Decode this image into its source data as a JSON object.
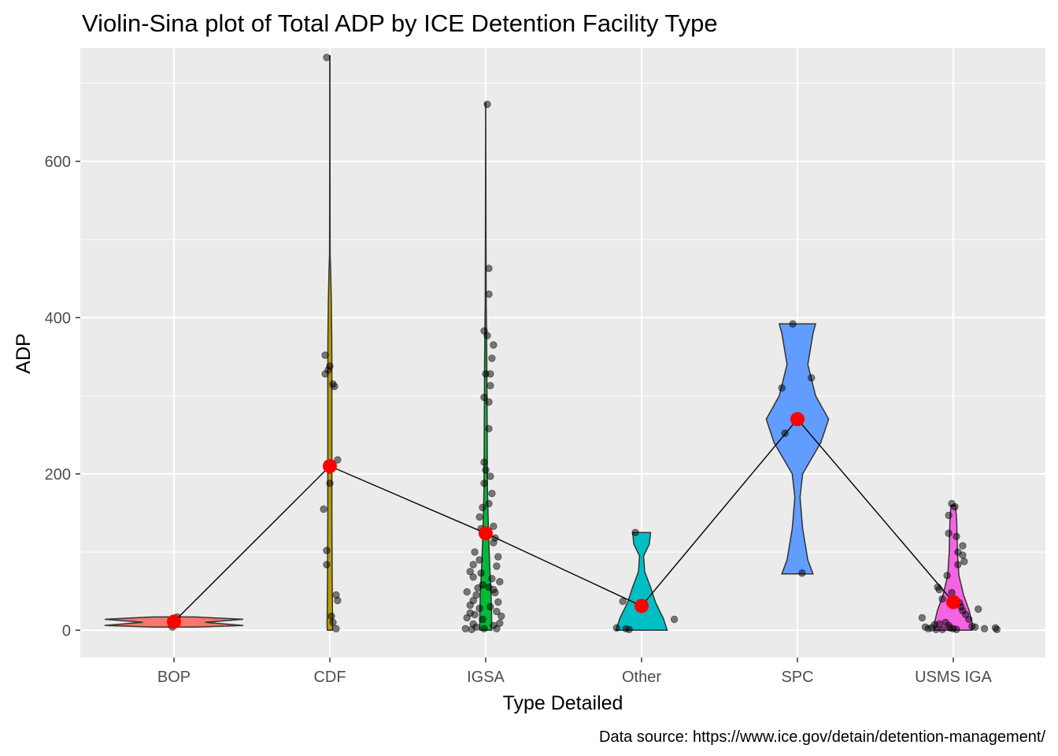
{
  "chart_data": {
    "type": "violin",
    "title": "Violin-Sina plot of Total ADP by ICE Detention Facility Type",
    "xlabel": "Type Detailed",
    "ylabel": "ADP",
    "caption": "Data source: https://www.ice.gov/detain/detention-management/",
    "categories": [
      "BOP",
      "CDF",
      "IGSA",
      "Other",
      "SPC",
      "USMS IGA"
    ],
    "ylim": [
      -35,
      745
    ],
    "yticks": [
      0,
      200,
      400,
      600
    ],
    "grid": true,
    "legend": "none",
    "background": "#EBEBEB",
    "colors": {
      "BOP": "#F8766D",
      "CDF": "#B79F00",
      "IGSA": "#00BA38",
      "Other": "#00BFC4",
      "SPC": "#619CFF",
      "USMS IGA": "#F564E3",
      "mean_point": "#FF0000",
      "mean_line": "#000000",
      "jitter_point": "#000000"
    },
    "violins": [
      {
        "category": "BOP",
        "profile": [
          [
            4,
            0.3
          ],
          [
            6,
            1.0
          ],
          [
            10,
            0.45
          ],
          [
            14,
            1.0
          ],
          [
            17,
            0.3
          ]
        ]
      },
      {
        "category": "CDF",
        "profile": [
          [
            0,
            0.9
          ],
          [
            5,
            1.0
          ],
          [
            60,
            0.85
          ],
          [
            150,
            0.75
          ],
          [
            250,
            0.75
          ],
          [
            320,
            0.75
          ],
          [
            370,
            0.7
          ],
          [
            420,
            0.55
          ],
          [
            460,
            0.3
          ],
          [
            480,
            0.12
          ],
          [
            520,
            0.08
          ],
          [
            620,
            0.06
          ],
          [
            735,
            0.05
          ]
        ]
      },
      {
        "category": "IGSA",
        "profile": [
          [
            0,
            1.0
          ],
          [
            20,
            1.0
          ],
          [
            50,
            0.9
          ],
          [
            80,
            0.7
          ],
          [
            120,
            0.5
          ],
          [
            180,
            0.3
          ],
          [
            250,
            0.25
          ],
          [
            330,
            0.2
          ],
          [
            380,
            0.15
          ],
          [
            420,
            0.08
          ],
          [
            500,
            0.05
          ],
          [
            600,
            0.03
          ],
          [
            675,
            0.02
          ]
        ]
      },
      {
        "category": "Other",
        "profile": [
          [
            0,
            1.0
          ],
          [
            15,
            0.85
          ],
          [
            35,
            0.55
          ],
          [
            55,
            0.35
          ],
          [
            75,
            0.12
          ],
          [
            95,
            0.08
          ],
          [
            110,
            0.3
          ],
          [
            125,
            0.35
          ]
        ]
      },
      {
        "category": "SPC",
        "profile": [
          [
            72,
            0.3
          ],
          [
            90,
            0.2
          ],
          [
            130,
            0.1
          ],
          [
            170,
            0.05
          ],
          [
            200,
            0.1
          ],
          [
            240,
            0.45
          ],
          [
            270,
            0.6
          ],
          [
            300,
            0.35
          ],
          [
            340,
            0.2
          ],
          [
            380,
            0.3
          ],
          [
            392,
            0.35
          ]
        ]
      },
      {
        "category": "USMS IGA",
        "profile": [
          [
            0,
            1.0
          ],
          [
            10,
            1.0
          ],
          [
            25,
            0.85
          ],
          [
            45,
            0.55
          ],
          [
            70,
            0.3
          ],
          [
            100,
            0.22
          ],
          [
            140,
            0.18
          ],
          [
            160,
            0.12
          ]
        ]
      }
    ],
    "means": [
      {
        "category": "BOP",
        "value": 11
      },
      {
        "category": "CDF",
        "value": 210
      },
      {
        "category": "IGSA",
        "value": 124
      },
      {
        "category": "Other",
        "value": 31
      },
      {
        "category": "SPC",
        "value": 270
      },
      {
        "category": "USMS IGA",
        "value": 36
      }
    ],
    "points": [
      {
        "category": "BOP",
        "offset": 0.02,
        "value": 17
      },
      {
        "category": "BOP",
        "offset": -0.01,
        "value": 4
      },
      {
        "category": "BOP",
        "offset": 0.01,
        "value": 10
      },
      {
        "category": "CDF",
        "offset": -0.02,
        "value": 733
      },
      {
        "category": "CDF",
        "offset": -0.03,
        "value": 352
      },
      {
        "category": "CDF",
        "offset": 0.0,
        "value": 338
      },
      {
        "category": "CDF",
        "offset": -0.01,
        "value": 333
      },
      {
        "category": "CDF",
        "offset": -0.03,
        "value": 328
      },
      {
        "category": "CDF",
        "offset": 0.02,
        "value": 315
      },
      {
        "category": "CDF",
        "offset": 0.03,
        "value": 312
      },
      {
        "category": "CDF",
        "offset": 0.05,
        "value": 218
      },
      {
        "category": "CDF",
        "offset": 0.0,
        "value": 205
      },
      {
        "category": "CDF",
        "offset": 0.0,
        "value": 188
      },
      {
        "category": "CDF",
        "offset": -0.04,
        "value": 155
      },
      {
        "category": "CDF",
        "offset": -0.02,
        "value": 102
      },
      {
        "category": "CDF",
        "offset": -0.02,
        "value": 84
      },
      {
        "category": "CDF",
        "offset": 0.04,
        "value": 45
      },
      {
        "category": "CDF",
        "offset": 0.05,
        "value": 38
      },
      {
        "category": "CDF",
        "offset": 0.01,
        "value": 18
      },
      {
        "category": "CDF",
        "offset": 0.02,
        "value": 10
      },
      {
        "category": "CDF",
        "offset": 0.04,
        "value": 2
      },
      {
        "category": "IGSA",
        "offset": 0.01,
        "value": 673
      },
      {
        "category": "IGSA",
        "offset": 0.02,
        "value": 463
      },
      {
        "category": "IGSA",
        "offset": 0.02,
        "value": 430
      },
      {
        "category": "IGSA",
        "offset": -0.01,
        "value": 383
      },
      {
        "category": "IGSA",
        "offset": 0.01,
        "value": 377
      },
      {
        "category": "IGSA",
        "offset": 0.05,
        "value": 365
      },
      {
        "category": "IGSA",
        "offset": 0.04,
        "value": 348
      },
      {
        "category": "IGSA",
        "offset": 0.0,
        "value": 328
      },
      {
        "category": "IGSA",
        "offset": 0.03,
        "value": 328
      },
      {
        "category": "IGSA",
        "offset": 0.03,
        "value": 313
      },
      {
        "category": "IGSA",
        "offset": -0.01,
        "value": 298
      },
      {
        "category": "IGSA",
        "offset": 0.02,
        "value": 292
      },
      {
        "category": "IGSA",
        "offset": 0.02,
        "value": 258
      },
      {
        "category": "IGSA",
        "offset": -0.01,
        "value": 215
      },
      {
        "category": "IGSA",
        "offset": 0.0,
        "value": 205
      },
      {
        "category": "IGSA",
        "offset": 0.03,
        "value": 197
      },
      {
        "category": "IGSA",
        "offset": -0.01,
        "value": 188
      },
      {
        "category": "IGSA",
        "offset": 0.04,
        "value": 175
      },
      {
        "category": "IGSA",
        "offset": 0.02,
        "value": 162
      },
      {
        "category": "IGSA",
        "offset": -0.02,
        "value": 157
      },
      {
        "category": "IGSA",
        "offset": -0.04,
        "value": 145
      },
      {
        "category": "IGSA",
        "offset": 0.05,
        "value": 133
      },
      {
        "category": "IGSA",
        "offset": -0.03,
        "value": 130
      },
      {
        "category": "IGSA",
        "offset": 0.06,
        "value": 118
      },
      {
        "category": "IGSA",
        "offset": 0.05,
        "value": 112
      },
      {
        "category": "IGSA",
        "offset": -0.07,
        "value": 100
      },
      {
        "category": "IGSA",
        "offset": 0.08,
        "value": 94
      },
      {
        "category": "IGSA",
        "offset": -0.04,
        "value": 90
      },
      {
        "category": "IGSA",
        "offset": -0.08,
        "value": 84
      },
      {
        "category": "IGSA",
        "offset": 0.07,
        "value": 82
      },
      {
        "category": "IGSA",
        "offset": -0.1,
        "value": 75
      },
      {
        "category": "IGSA",
        "offset": -0.03,
        "value": 73
      },
      {
        "category": "IGSA",
        "offset": -0.08,
        "value": 68
      },
      {
        "category": "IGSA",
        "offset": 0.04,
        "value": 66
      },
      {
        "category": "IGSA",
        "offset": 0.09,
        "value": 62
      },
      {
        "category": "IGSA",
        "offset": -0.02,
        "value": 58
      },
      {
        "category": "IGSA",
        "offset": 0.02,
        "value": 55
      },
      {
        "category": "IGSA",
        "offset": -0.05,
        "value": 54
      },
      {
        "category": "IGSA",
        "offset": 0.05,
        "value": 52
      },
      {
        "category": "IGSA",
        "offset": -0.12,
        "value": 49
      },
      {
        "category": "IGSA",
        "offset": 0.06,
        "value": 48
      },
      {
        "category": "IGSA",
        "offset": -0.06,
        "value": 45
      },
      {
        "category": "IGSA",
        "offset": -0.08,
        "value": 38
      },
      {
        "category": "IGSA",
        "offset": 0.08,
        "value": 36
      },
      {
        "category": "IGSA",
        "offset": -0.1,
        "value": 32
      },
      {
        "category": "IGSA",
        "offset": 0.03,
        "value": 30
      },
      {
        "category": "IGSA",
        "offset": -0.04,
        "value": 28
      },
      {
        "category": "IGSA",
        "offset": 0.07,
        "value": 24
      },
      {
        "category": "IGSA",
        "offset": -0.1,
        "value": 22
      },
      {
        "category": "IGSA",
        "offset": -0.07,
        "value": 20
      },
      {
        "category": "IGSA",
        "offset": 0.1,
        "value": 18
      },
      {
        "category": "IGSA",
        "offset": -0.12,
        "value": 16
      },
      {
        "category": "IGSA",
        "offset": -0.02,
        "value": 14
      },
      {
        "category": "IGSA",
        "offset": 0.09,
        "value": 9
      },
      {
        "category": "IGSA",
        "offset": -0.08,
        "value": 8
      },
      {
        "category": "IGSA",
        "offset": 0.05,
        "value": 6
      },
      {
        "category": "IGSA",
        "offset": -0.06,
        "value": 4
      },
      {
        "category": "IGSA",
        "offset": -0.13,
        "value": 2
      },
      {
        "category": "IGSA",
        "offset": -0.01,
        "value": 2
      },
      {
        "category": "IGSA",
        "offset": 0.07,
        "value": 2
      },
      {
        "category": "IGSA",
        "offset": -0.09,
        "value": 1
      },
      {
        "category": "Other",
        "offset": -0.04,
        "value": 125
      },
      {
        "category": "Other",
        "offset": -0.12,
        "value": 37
      },
      {
        "category": "Other",
        "offset": 0.21,
        "value": 14
      },
      {
        "category": "Other",
        "offset": -0.16,
        "value": 3
      },
      {
        "category": "Other",
        "offset": -0.1,
        "value": 2
      },
      {
        "category": "Other",
        "offset": -0.08,
        "value": 1
      },
      {
        "category": "SPC",
        "offset": -0.03,
        "value": 392
      },
      {
        "category": "SPC",
        "offset": 0.09,
        "value": 323
      },
      {
        "category": "SPC",
        "offset": -0.1,
        "value": 310
      },
      {
        "category": "SPC",
        "offset": -0.08,
        "value": 252
      },
      {
        "category": "SPC",
        "offset": 0.03,
        "value": 73
      },
      {
        "category": "USMS IGA",
        "offset": -0.01,
        "value": 162
      },
      {
        "category": "USMS IGA",
        "offset": 0.01,
        "value": 158
      },
      {
        "category": "USMS IGA",
        "offset": -0.03,
        "value": 147
      },
      {
        "category": "USMS IGA",
        "offset": -0.03,
        "value": 124
      },
      {
        "category": "USMS IGA",
        "offset": 0.02,
        "value": 120
      },
      {
        "category": "USMS IGA",
        "offset": 0.06,
        "value": 108
      },
      {
        "category": "USMS IGA",
        "offset": 0.03,
        "value": 100
      },
      {
        "category": "USMS IGA",
        "offset": 0.06,
        "value": 96
      },
      {
        "category": "USMS IGA",
        "offset": 0.07,
        "value": 88
      },
      {
        "category": "USMS IGA",
        "offset": 0.03,
        "value": 84
      },
      {
        "category": "USMS IGA",
        "offset": -0.04,
        "value": 70
      },
      {
        "category": "USMS IGA",
        "offset": -0.1,
        "value": 55
      },
      {
        "category": "USMS IGA",
        "offset": -0.09,
        "value": 52
      },
      {
        "category": "USMS IGA",
        "offset": -0.01,
        "value": 48
      },
      {
        "category": "USMS IGA",
        "offset": -0.07,
        "value": 40
      },
      {
        "category": "USMS IGA",
        "offset": 0.04,
        "value": 35
      },
      {
        "category": "USMS IGA",
        "offset": 0.05,
        "value": 30
      },
      {
        "category": "USMS IGA",
        "offset": 0.16,
        "value": 27
      },
      {
        "category": "USMS IGA",
        "offset": 0.06,
        "value": 25
      },
      {
        "category": "USMS IGA",
        "offset": 0.08,
        "value": 20
      },
      {
        "category": "USMS IGA",
        "offset": -0.2,
        "value": 16
      },
      {
        "category": "USMS IGA",
        "offset": 0.1,
        "value": 14
      },
      {
        "category": "USMS IGA",
        "offset": -0.05,
        "value": 10
      },
      {
        "category": "USMS IGA",
        "offset": -0.09,
        "value": 8
      },
      {
        "category": "USMS IGA",
        "offset": -0.12,
        "value": 7
      },
      {
        "category": "USMS IGA",
        "offset": -0.03,
        "value": 6
      },
      {
        "category": "USMS IGA",
        "offset": 0.12,
        "value": 5
      },
      {
        "category": "USMS IGA",
        "offset": -0.18,
        "value": 4
      },
      {
        "category": "USMS IGA",
        "offset": 0.14,
        "value": 4
      },
      {
        "category": "USMS IGA",
        "offset": -0.14,
        "value": 3
      },
      {
        "category": "USMS IGA",
        "offset": -0.02,
        "value": 3
      },
      {
        "category": "USMS IGA",
        "offset": 0.27,
        "value": 3
      },
      {
        "category": "USMS IGA",
        "offset": -0.16,
        "value": 2
      },
      {
        "category": "USMS IGA",
        "offset": 0.0,
        "value": 2
      },
      {
        "category": "USMS IGA",
        "offset": 0.2,
        "value": 2
      },
      {
        "category": "USMS IGA",
        "offset": -0.11,
        "value": 1
      },
      {
        "category": "USMS IGA",
        "offset": -0.07,
        "value": 1
      },
      {
        "category": "USMS IGA",
        "offset": 0.02,
        "value": 1
      },
      {
        "category": "USMS IGA",
        "offset": 0.28,
        "value": 1
      }
    ]
  }
}
